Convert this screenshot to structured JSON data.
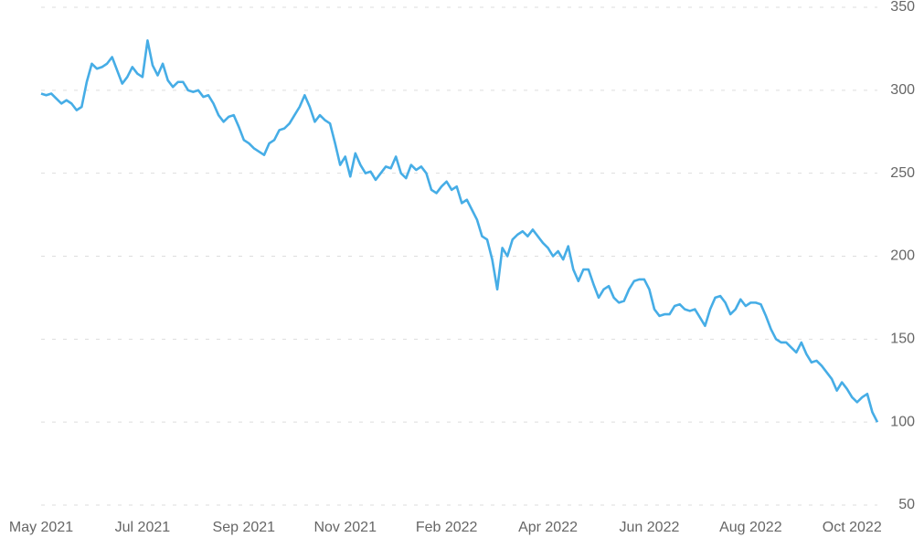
{
  "chart_data": {
    "type": "line",
    "categories": [
      "May 2021",
      null,
      null,
      null,
      null,
      null,
      null,
      null,
      null,
      null,
      null,
      null,
      null,
      null,
      null,
      null,
      null,
      null,
      null,
      null,
      "Jul 2021",
      null,
      null,
      null,
      null,
      null,
      null,
      null,
      null,
      null,
      null,
      null,
      null,
      null,
      null,
      null,
      null,
      null,
      null,
      null,
      "Sep 2021",
      null,
      null,
      null,
      null,
      null,
      null,
      null,
      null,
      null,
      null,
      null,
      null,
      null,
      null,
      null,
      null,
      null,
      null,
      null,
      "Nov 2021",
      null,
      null,
      null,
      null,
      null,
      null,
      null,
      null,
      null,
      null,
      null,
      null,
      null,
      null,
      null,
      null,
      null,
      null,
      null,
      "Feb 2022",
      null,
      null,
      null,
      null,
      null,
      null,
      null,
      null,
      null,
      null,
      null,
      null,
      null,
      null,
      null,
      null,
      null,
      null,
      null,
      "Apr 2022",
      null,
      null,
      null,
      null,
      null,
      null,
      null,
      null,
      null,
      null,
      null,
      null,
      null,
      null,
      null,
      null,
      null,
      null,
      null,
      "Jun 2022",
      null,
      null,
      null,
      null,
      null,
      null,
      null,
      null,
      null,
      null,
      null,
      null,
      null,
      null,
      null,
      null,
      null,
      null,
      null,
      "Aug 2022",
      null,
      null,
      null,
      null,
      null,
      null,
      null,
      null,
      null,
      null,
      null,
      null,
      null,
      null,
      null,
      null,
      null,
      null,
      null,
      "Oct 2022",
      null,
      null,
      null,
      null,
      null
    ],
    "series": [
      {
        "color": "#46ade6",
        "values": [
          298,
          297,
          298,
          295,
          292,
          294,
          292,
          288,
          290,
          305,
          316,
          313,
          314,
          316,
          320,
          312,
          304,
          308,
          314,
          310,
          308,
          330,
          315,
          309,
          316,
          306,
          302,
          305,
          305,
          300,
          299,
          300,
          296,
          297,
          292,
          285,
          281,
          284,
          285,
          278,
          270,
          268,
          265,
          263,
          261,
          268,
          270,
          276,
          277,
          280,
          285,
          290,
          297,
          290,
          281,
          285,
          282,
          280,
          268,
          255,
          260,
          248,
          262,
          255,
          250,
          251,
          246,
          250,
          254,
          253,
          260,
          250,
          247,
          255,
          252,
          254,
          250,
          240,
          238,
          242,
          245,
          240,
          242,
          232,
          234,
          228,
          222,
          212,
          210,
          198,
          180,
          205,
          200,
          210,
          213,
          215,
          212,
          216,
          212,
          208,
          205,
          200,
          203,
          198,
          206,
          192,
          185,
          192,
          192,
          183,
          175,
          180,
          182,
          175,
          172,
          173,
          180,
          185,
          186,
          186,
          180,
          168,
          164,
          165,
          165,
          170,
          171,
          168,
          167,
          168,
          163,
          158,
          168,
          175,
          176,
          172,
          165,
          168,
          174,
          170,
          172,
          172,
          171,
          164,
          156,
          150,
          148,
          148,
          145,
          142,
          148,
          141,
          136,
          137,
          134,
          130,
          126,
          119,
          124,
          120,
          115,
          112,
          115,
          117,
          106,
          100
        ]
      }
    ],
    "ylim": [
      50,
      350
    ],
    "yticks": [
      50,
      100,
      150,
      200,
      250,
      300,
      350
    ],
    "grid": true
  }
}
